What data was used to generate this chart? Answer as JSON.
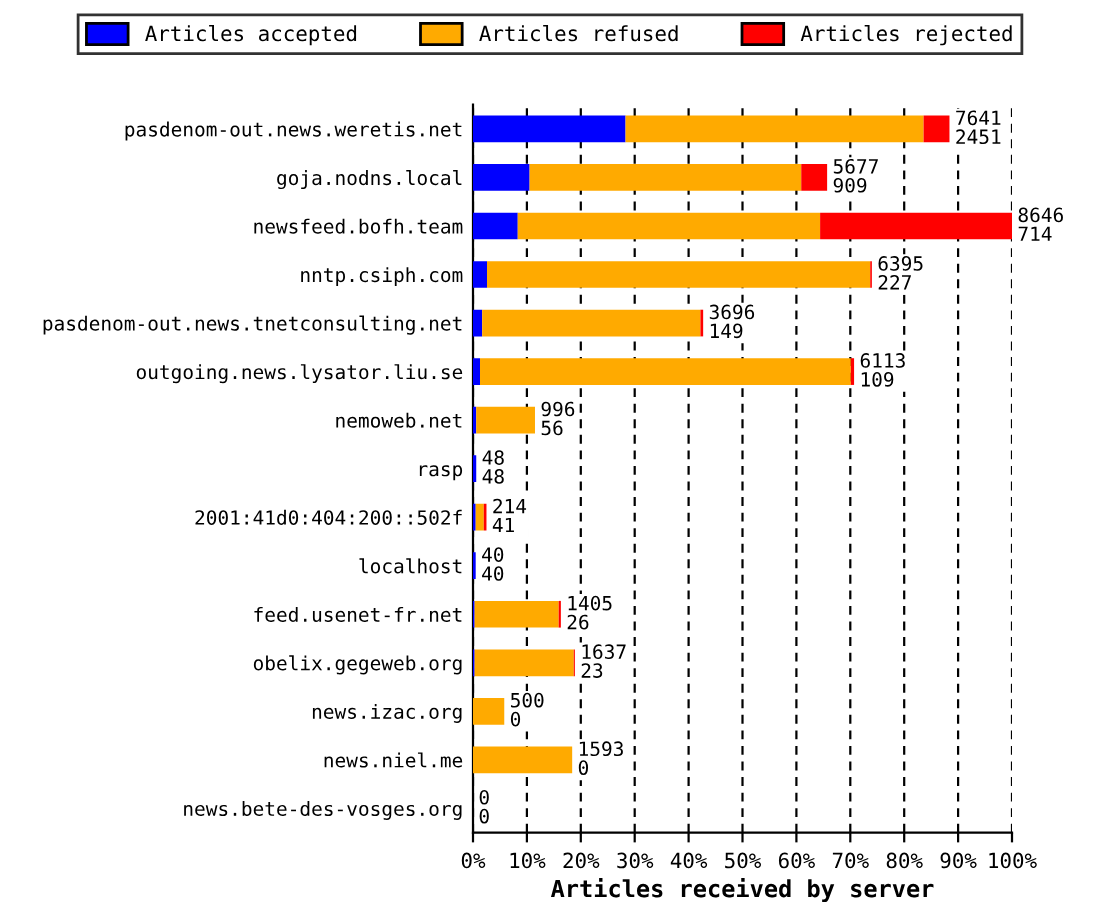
{
  "chart_data": {
    "type": "bar",
    "orientation": "horizontal",
    "stacked": true,
    "xlabel": "Articles received by server",
    "categories": [
      "pasdenom-out.news.weretis.net",
      "goja.nodns.local",
      "newsfeed.bofh.team",
      "nntp.csiph.com",
      "pasdenom-out.news.tnetconsulting.net",
      "outgoing.news.lysator.liu.se",
      "nemoweb.net",
      "rasp",
      "2001:41d0:404:200::502f",
      "localhost",
      "feed.usenet-fr.net",
      "obelix.gegeweb.org",
      "news.izac.org",
      "news.niel.me",
      "news.bete-des-vosges.org"
    ],
    "series": [
      {
        "name": "Articles accepted",
        "color": "#0000ff",
        "values": [
          28.3,
          10.5,
          8.3,
          2.6,
          1.7,
          1.3,
          0.6,
          0.6,
          0.5,
          0.5,
          0.3,
          0.3,
          0,
          0,
          0
        ]
      },
      {
        "name": "Articles refused",
        "color": "#ffaa00",
        "values": [
          55.3,
          50.4,
          56.1,
          71.1,
          40.5,
          68.8,
          10.9,
          0,
          1.5,
          0,
          15.6,
          18.4,
          5.8,
          18.4,
          0
        ]
      },
      {
        "name": "Articles rejected",
        "color": "#ff0000",
        "values": [
          4.8,
          4.8,
          35.6,
          0.3,
          0.5,
          0.6,
          0,
          0,
          0.5,
          0,
          0.4,
          0.2,
          0,
          0,
          0
        ]
      }
    ],
    "value_labels": [
      "7641\n2451",
      "5677\n909",
      "8646\n714",
      "6395\n227",
      "3696\n149",
      "6113\n109",
      "996\n56",
      "48\n48",
      "214\n41",
      "40\n40",
      "1405\n26",
      "1637\n23",
      "500\n0",
      "1593\n0",
      "0\n0"
    ],
    "xlim": [
      0,
      100
    ],
    "xticks": [
      {
        "value": 0,
        "label": "0%"
      },
      {
        "value": 10,
        "label": "10%"
      },
      {
        "value": 20,
        "label": "20%"
      },
      {
        "value": 30,
        "label": "30%"
      },
      {
        "value": 40,
        "label": "40%"
      },
      {
        "value": 50,
        "label": "50%"
      },
      {
        "value": 60,
        "label": "60%"
      },
      {
        "value": 70,
        "label": "70%"
      },
      {
        "value": 80,
        "label": "80%"
      },
      {
        "value": 90,
        "label": "90%"
      },
      {
        "value": 100,
        "label": "100%"
      }
    ],
    "grid": "x",
    "legend": "top"
  }
}
